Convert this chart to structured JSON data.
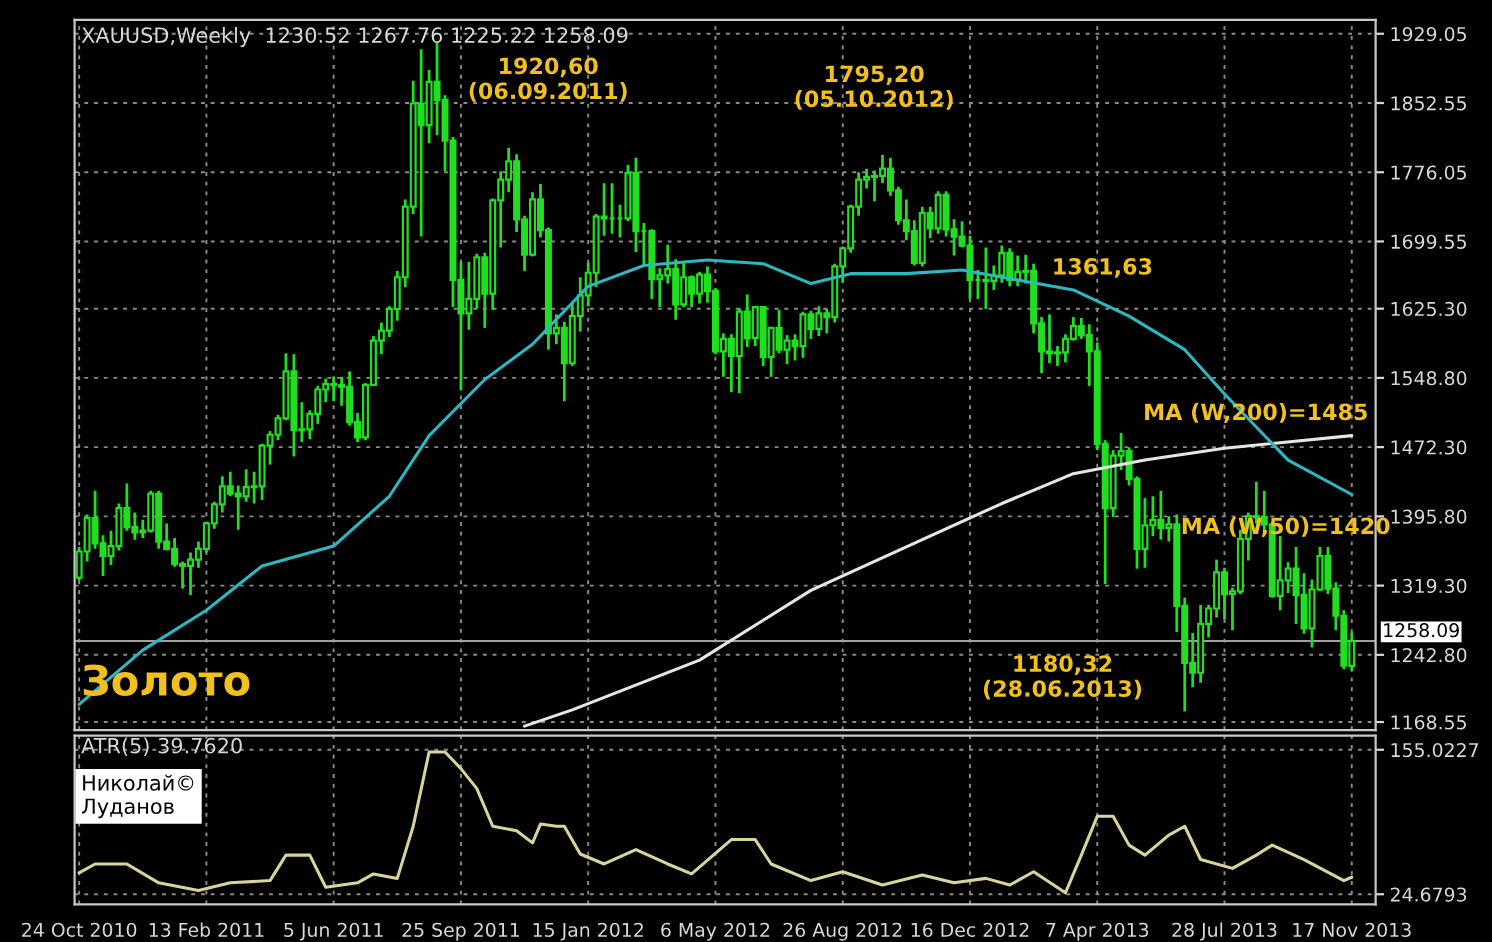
{
  "chart_data": [
    {
      "type": "candlestick",
      "title": "XAUUSD,Weekly  1230.52 1267.76 1225.22 1258.09",
      "color": "#22dd22",
      "x": [
        "2010-10-24",
        "2010-10-31",
        "2010-11-07",
        "2010-11-14",
        "2010-11-21",
        "2010-11-28",
        "2010-12-05",
        "2010-12-12",
        "2010-12-19",
        "2010-12-26",
        "2011-01-02",
        "2011-01-09",
        "2011-01-16",
        "2011-01-23",
        "2011-01-30",
        "2011-02-06",
        "2011-02-13",
        "2011-02-20",
        "2011-02-27",
        "2011-03-06",
        "2011-03-13",
        "2011-03-20",
        "2011-03-27",
        "2011-04-03",
        "2011-04-10",
        "2011-04-17",
        "2011-04-24",
        "2011-05-01",
        "2011-05-08",
        "2011-05-15",
        "2011-05-22",
        "2011-05-29",
        "2011-06-05",
        "2011-06-12",
        "2011-06-19",
        "2011-06-26",
        "2011-07-03",
        "2011-07-10",
        "2011-07-17",
        "2011-07-24",
        "2011-07-31",
        "2011-08-07",
        "2011-08-14",
        "2011-08-21",
        "2011-08-28",
        "2011-09-04",
        "2011-09-11",
        "2011-09-18",
        "2011-09-25",
        "2011-10-02",
        "2011-10-09",
        "2011-10-16",
        "2011-10-23",
        "2011-10-30",
        "2011-11-06",
        "2011-11-13",
        "2011-11-20",
        "2011-11-27",
        "2011-12-04",
        "2011-12-11",
        "2011-12-18",
        "2011-12-25",
        "2012-01-01",
        "2012-01-08",
        "2012-01-15",
        "2012-01-22",
        "2012-01-29",
        "2012-02-05",
        "2012-02-12",
        "2012-02-19",
        "2012-02-26",
        "2012-03-04",
        "2012-03-11",
        "2012-03-18",
        "2012-03-25",
        "2012-04-01",
        "2012-04-08",
        "2012-04-15",
        "2012-04-22",
        "2012-04-29",
        "2012-05-06",
        "2012-05-13",
        "2012-05-20",
        "2012-05-27",
        "2012-06-03",
        "2012-06-10",
        "2012-06-17",
        "2012-06-24",
        "2012-07-01",
        "2012-07-08",
        "2012-07-15",
        "2012-07-22",
        "2012-07-29",
        "2012-08-05",
        "2012-08-12",
        "2012-08-19",
        "2012-08-26",
        "2012-09-02",
        "2012-09-09",
        "2012-09-16",
        "2012-09-23",
        "2012-09-30",
        "2012-10-07",
        "2012-10-14",
        "2012-10-21",
        "2012-10-28",
        "2012-11-04",
        "2012-11-11",
        "2012-11-18",
        "2012-11-25",
        "2012-12-02",
        "2012-12-09",
        "2012-12-16",
        "2012-12-23",
        "2012-12-30",
        "2013-01-06",
        "2013-01-13",
        "2013-01-20",
        "2013-01-27",
        "2013-02-03",
        "2013-02-10",
        "2013-02-17",
        "2013-02-24",
        "2013-03-03",
        "2013-03-10",
        "2013-03-17",
        "2013-03-24",
        "2013-03-31",
        "2013-04-07",
        "2013-04-14",
        "2013-04-21",
        "2013-04-28",
        "2013-05-05",
        "2013-05-12",
        "2013-05-19",
        "2013-05-26",
        "2013-06-02",
        "2013-06-09",
        "2013-06-16",
        "2013-06-23",
        "2013-06-30",
        "2013-07-07",
        "2013-07-14",
        "2013-07-21",
        "2013-07-28",
        "2013-08-04",
        "2013-08-11",
        "2013-08-18",
        "2013-08-25",
        "2013-09-01",
        "2013-09-08",
        "2013-09-15",
        "2013-09-22",
        "2013-09-29",
        "2013-10-06",
        "2013-10-13",
        "2013-10-20",
        "2013-10-27",
        "2013-11-03",
        "2013-11-10",
        "2013-11-17"
      ],
      "ohlc": [
        [
          1328,
          1362,
          1325,
          1357
        ],
        [
          1357,
          1398,
          1346,
          1394
        ],
        [
          1394,
          1424,
          1360,
          1366
        ],
        [
          1366,
          1375,
          1330,
          1352
        ],
        [
          1352,
          1380,
          1342,
          1363
        ],
        [
          1363,
          1410,
          1358,
          1405
        ],
        [
          1405,
          1432,
          1380,
          1384
        ],
        [
          1384,
          1400,
          1370,
          1378
        ],
        [
          1378,
          1392,
          1372,
          1380
        ],
        [
          1380,
          1424,
          1378,
          1421
        ],
        [
          1421,
          1424,
          1360,
          1368
        ],
        [
          1368,
          1388,
          1358,
          1360
        ],
        [
          1360,
          1372,
          1340,
          1343
        ],
        [
          1343,
          1346,
          1316,
          1341
        ],
        [
          1341,
          1356,
          1309,
          1348
        ],
        [
          1348,
          1368,
          1339,
          1360
        ],
        [
          1360,
          1390,
          1356,
          1388
        ],
        [
          1388,
          1412,
          1382,
          1409
        ],
        [
          1409,
          1440,
          1400,
          1429
        ],
        [
          1429,
          1445,
          1418,
          1421
        ],
        [
          1421,
          1430,
          1381,
          1418
        ],
        [
          1418,
          1448,
          1412,
          1428
        ],
        [
          1428,
          1445,
          1410,
          1429
        ],
        [
          1429,
          1476,
          1414,
          1474
        ],
        [
          1474,
          1490,
          1453,
          1486
        ],
        [
          1486,
          1508,
          1480,
          1504
        ],
        [
          1504,
          1576,
          1502,
          1556
        ],
        [
          1556,
          1575,
          1462,
          1491
        ],
        [
          1491,
          1522,
          1478,
          1492
        ],
        [
          1492,
          1513,
          1481,
          1509
        ],
        [
          1509,
          1540,
          1498,
          1536
        ],
        [
          1536,
          1548,
          1522,
          1542
        ],
        [
          1542,
          1550,
          1523,
          1541
        ],
        [
          1541,
          1550,
          1518,
          1539
        ],
        [
          1539,
          1556,
          1496,
          1500
        ],
        [
          1500,
          1510,
          1478,
          1483
        ],
        [
          1483,
          1543,
          1480,
          1541
        ],
        [
          1541,
          1595,
          1540,
          1590
        ],
        [
          1590,
          1610,
          1575,
          1601
        ],
        [
          1601,
          1628,
          1594,
          1625
        ],
        [
          1625,
          1667,
          1612,
          1660
        ],
        [
          1660,
          1746,
          1649,
          1738
        ],
        [
          1738,
          1877,
          1730,
          1852
        ],
        [
          1852,
          1912,
          1705,
          1828
        ],
        [
          1828,
          1889,
          1808,
          1876
        ],
        [
          1876,
          1920.6,
          1817,
          1856
        ],
        [
          1856,
          1861,
          1777,
          1811
        ],
        [
          1811,
          1815,
          1627,
          1657
        ],
        [
          1657,
          1677,
          1535,
          1620
        ],
        [
          1620,
          1677,
          1602,
          1636
        ],
        [
          1636,
          1686,
          1625,
          1682
        ],
        [
          1682,
          1687,
          1604,
          1642
        ],
        [
          1642,
          1747,
          1624,
          1745
        ],
        [
          1745,
          1777,
          1693,
          1768
        ],
        [
          1768,
          1803,
          1754,
          1788
        ],
        [
          1788,
          1796,
          1710,
          1724
        ],
        [
          1724,
          1728,
          1667,
          1685
        ],
        [
          1685,
          1754,
          1683,
          1746
        ],
        [
          1746,
          1763,
          1704,
          1712
        ],
        [
          1712,
          1715,
          1580,
          1598
        ],
        [
          1598,
          1619,
          1586,
          1604
        ],
        [
          1604,
          1611,
          1523,
          1565
        ],
        [
          1565,
          1631,
          1562,
          1617
        ],
        [
          1617,
          1660,
          1600,
          1640
        ],
        [
          1640,
          1676,
          1628,
          1665
        ],
        [
          1665,
          1730,
          1649,
          1727
        ],
        [
          1727,
          1764,
          1706,
          1725
        ],
        [
          1725,
          1764,
          1708,
          1725
        ],
        [
          1725,
          1740,
          1704,
          1725
        ],
        [
          1725,
          1784,
          1722,
          1775
        ],
        [
          1775,
          1792,
          1688,
          1711
        ],
        [
          1711,
          1720,
          1673,
          1711
        ],
        [
          1711,
          1713,
          1636,
          1658
        ],
        [
          1658,
          1670,
          1627,
          1662
        ],
        [
          1662,
          1696,
          1653,
          1669
        ],
        [
          1669,
          1680,
          1613,
          1630
        ],
        [
          1630,
          1678,
          1627,
          1660
        ],
        [
          1660,
          1662,
          1627,
          1642
        ],
        [
          1642,
          1666,
          1631,
          1663
        ],
        [
          1663,
          1672,
          1632,
          1645
        ],
        [
          1645,
          1648,
          1575,
          1578
        ],
        [
          1578,
          1598,
          1550,
          1592
        ],
        [
          1592,
          1597,
          1533,
          1573
        ],
        [
          1573,
          1626,
          1532,
          1622
        ],
        [
          1622,
          1641,
          1583,
          1593
        ],
        [
          1593,
          1628,
          1584,
          1627
        ],
        [
          1627,
          1628,
          1562,
          1572
        ],
        [
          1572,
          1605,
          1550,
          1604
        ],
        [
          1604,
          1624,
          1576,
          1580
        ],
        [
          1580,
          1596,
          1564,
          1590
        ],
        [
          1590,
          1597,
          1568,
          1584
        ],
        [
          1584,
          1622,
          1571,
          1619
        ],
        [
          1619,
          1623,
          1592,
          1603
        ],
        [
          1603,
          1628,
          1595,
          1620
        ],
        [
          1620,
          1625,
          1598,
          1616
        ],
        [
          1616,
          1675,
          1610,
          1672
        ],
        [
          1672,
          1694,
          1654,
          1692
        ],
        [
          1692,
          1740,
          1687,
          1738
        ],
        [
          1738,
          1776,
          1728,
          1768
        ],
        [
          1768,
          1780,
          1758,
          1771
        ],
        [
          1771,
          1778,
          1744,
          1772
        ],
        [
          1772,
          1795.2,
          1764,
          1780
        ],
        [
          1780,
          1792,
          1750,
          1756
        ],
        [
          1756,
          1760,
          1718,
          1723
        ],
        [
          1723,
          1746,
          1701,
          1711
        ],
        [
          1711,
          1723,
          1673,
          1676
        ],
        [
          1676,
          1738,
          1672,
          1731
        ],
        [
          1731,
          1738,
          1703,
          1714
        ],
        [
          1714,
          1755,
          1708,
          1751
        ],
        [
          1751,
          1755,
          1705,
          1713
        ],
        [
          1713,
          1724,
          1684,
          1705
        ],
        [
          1705,
          1722,
          1693,
          1695
        ],
        [
          1695,
          1706,
          1636,
          1657
        ],
        [
          1657,
          1668,
          1636,
          1657
        ],
        [
          1657,
          1693,
          1625,
          1656
        ],
        [
          1656,
          1673,
          1646,
          1662
        ],
        [
          1662,
          1695,
          1654,
          1687
        ],
        [
          1687,
          1692,
          1650,
          1657
        ],
        [
          1657,
          1684,
          1650,
          1666
        ],
        [
          1666,
          1685,
          1653,
          1667
        ],
        [
          1667,
          1675,
          1598,
          1609
        ],
        [
          1609,
          1616,
          1554,
          1578
        ],
        [
          1578,
          1619,
          1565,
          1576
        ],
        [
          1576,
          1584,
          1562,
          1577
        ],
        [
          1577,
          1597,
          1566,
          1592
        ],
        [
          1592,
          1616,
          1590,
          1606
        ],
        [
          1606,
          1615,
          1592,
          1596
        ],
        [
          1596,
          1608,
          1540,
          1578
        ],
        [
          1578,
          1588,
          1469,
          1476
        ],
        [
          1476,
          1480,
          1321,
          1405
        ],
        [
          1405,
          1469,
          1395,
          1463
        ],
        [
          1463,
          1488,
          1447,
          1468
        ],
        [
          1468,
          1472,
          1430,
          1437
        ],
        [
          1437,
          1440,
          1338,
          1360
        ],
        [
          1360,
          1416,
          1339,
          1386
        ],
        [
          1386,
          1418,
          1374,
          1392
        ],
        [
          1392,
          1424,
          1370,
          1383
        ],
        [
          1383,
          1396,
          1368,
          1387
        ],
        [
          1387,
          1398,
          1268,
          1297
        ],
        [
          1297,
          1306,
          1180.32,
          1234
        ],
        [
          1234,
          1267,
          1207,
          1223
        ],
        [
          1223,
          1298,
          1212,
          1277
        ],
        [
          1277,
          1298,
          1262,
          1294
        ],
        [
          1294,
          1348,
          1284,
          1334
        ],
        [
          1334,
          1339,
          1282,
          1310
        ],
        [
          1310,
          1317,
          1270,
          1313
        ],
        [
          1313,
          1381,
          1310,
          1371
        ],
        [
          1371,
          1400,
          1347,
          1396
        ],
        [
          1396,
          1434,
          1388,
          1395
        ],
        [
          1395,
          1424,
          1377,
          1387
        ],
        [
          1387,
          1390,
          1306,
          1308
        ],
        [
          1308,
          1374,
          1292,
          1325
        ],
        [
          1325,
          1345,
          1311,
          1338
        ],
        [
          1338,
          1362,
          1277,
          1309
        ],
        [
          1309,
          1333,
          1266,
          1272
        ],
        [
          1272,
          1326,
          1251,
          1315
        ],
        [
          1315,
          1362,
          1313,
          1352
        ],
        [
          1352,
          1362,
          1310,
          1316
        ],
        [
          1316,
          1323,
          1270,
          1286
        ],
        [
          1286,
          1292,
          1227,
          1231
        ],
        [
          1230.52,
          1267.76,
          1225.22,
          1258.09
        ]
      ],
      "series": [
        {
          "type": "line",
          "name": "MA (W,200)=1485",
          "color": "#e6e6e6",
          "x": [
            "2011-11-20",
            "2012-01-01",
            "2012-04-22",
            "2012-07-29",
            "2012-11-04",
            "2013-01-13",
            "2013-03-17",
            "2013-05-19",
            "2013-07-28",
            "2013-11-17"
          ],
          "values": [
            1164,
            1182,
            1237,
            1314,
            1370,
            1410,
            1443,
            1458,
            1471,
            1485
          ]
        },
        {
          "type": "line",
          "name": "MA (W,50)=1420",
          "color": "#2bb8c4",
          "x": [
            "2010-10-24",
            "2010-12-19",
            "2011-02-13",
            "2011-04-03",
            "2011-06-05",
            "2011-07-24",
            "2011-08-28",
            "2011-10-16",
            "2011-11-27",
            "2012-01-15",
            "2012-03-04",
            "2012-04-29",
            "2012-06-17",
            "2012-07-29",
            "2012-09-02",
            "2012-10-21",
            "2012-12-09",
            "2013-01-27",
            "2013-03-17",
            "2013-05-05",
            "2013-06-23",
            "2013-07-28",
            "2013-09-22",
            "2013-11-17"
          ],
          "values": [
            1188,
            1248,
            1292,
            1341,
            1363,
            1418,
            1485,
            1547,
            1586,
            1650,
            1673,
            1679,
            1675,
            1653,
            1664,
            1664,
            1668,
            1657,
            1646,
            1617,
            1580,
            1531,
            1458,
            1420
          ]
        }
      ],
      "annotations": [
        {
          "text": "1920,60\n(06.09.2011)",
          "x": "2011-09-04",
          "y": 1920.6
        },
        {
          "text": "1795,20\n(05.10.2012)",
          "x": "2012-09-30",
          "y": 1795.2
        },
        {
          "text": "1180,32\n(28.06.2013)",
          "x": "2013-06-23",
          "y": 1180.32
        },
        "1361,63",
        "Золото"
      ],
      "ref_lines": [
        {
          "axis": "y",
          "value": 1258.09,
          "label": "1258.09",
          "color": "#a0a0a0"
        }
      ],
      "xlim": [
        "2010-10-20",
        "2013-12-08"
      ],
      "xticks": [
        {
          "value": "2010-10-24",
          "label": null
        },
        {
          "value": "2011-02-13",
          "label": null
        },
        {
          "value": "2011-06-05",
          "label": null
        },
        {
          "value": "2011-09-25",
          "label": null
        },
        {
          "value": "2012-01-15",
          "label": null
        },
        {
          "value": "2012-05-06",
          "label": null
        },
        {
          "value": "2012-08-26",
          "label": null
        },
        {
          "value": "2012-12-16",
          "label": null
        },
        {
          "value": "2013-04-07",
          "label": null
        },
        {
          "value": "2013-07-28",
          "label": null
        },
        {
          "value": "2013-11-17",
          "label": null
        }
      ],
      "ylim": [
        1159.7,
        1944.5
      ],
      "yticks": [
        1929.05,
        1852.55,
        1776.05,
        1699.55,
        {
          "value": 1625.3,
          "label": "1625.30"
        },
        {
          "value": 1548.8,
          "label": "1548.80"
        },
        {
          "value": 1472.3,
          "label": "1472.30"
        },
        {
          "value": 1395.8,
          "label": "1395.80"
        },
        {
          "value": 1319.3,
          "label": "1319.30"
        },
        {
          "value": 1242.8,
          "label": "1242.80"
        },
        1168.55
      ],
      "tick_labels": "y",
      "grid": true
    },
    {
      "type": "line",
      "title": "ATR(5) 39.7620",
      "series": [
        {
          "color": "#d8d49a",
          "x": [
            "2010-10-24",
            "2010-11-07",
            "2010-12-05",
            "2011-01-02",
            "2011-02-06",
            "2011-03-06",
            "2011-04-10",
            "2011-04-24",
            "2011-05-15",
            "2011-05-29",
            "2011-06-26",
            "2011-07-10",
            "2011-07-31",
            "2011-08-14",
            "2011-08-28",
            "2011-09-11",
            "2011-09-25",
            "2011-10-09",
            "2011-10-23",
            "2011-11-13",
            "2011-11-27",
            "2011-12-04",
            "2011-12-18",
            "2011-12-25",
            "2012-01-08",
            "2012-01-29",
            "2012-02-26",
            "2012-03-25",
            "2012-04-15",
            "2012-05-20",
            "2012-06-10",
            "2012-06-24",
            "2012-07-29",
            "2012-08-26",
            "2012-09-30",
            "2012-11-04",
            "2012-12-02",
            "2012-12-30",
            "2013-01-20",
            "2013-02-10",
            "2013-03-10",
            "2013-03-24",
            "2013-04-07",
            "2013-04-21",
            "2013-05-05",
            "2013-05-19",
            "2013-06-09",
            "2013-06-23",
            "2013-07-07",
            "2013-08-04",
            "2013-08-25",
            "2013-09-08",
            "2013-10-06",
            "2013-11-10",
            "2013-11-17"
          ],
          "values": [
            44,
            52,
            52,
            35,
            28,
            35,
            37,
            60,
            60,
            31,
            35,
            43,
            39,
            86,
            153,
            153,
            138,
            120,
            86,
            82,
            71,
            88,
            86,
            86,
            61,
            52,
            65,
            52,
            43,
            74,
            74,
            52,
            37,
            45,
            33,
            42,
            35,
            39,
            33,
            45,
            26,
            60,
            95,
            95,
            69,
            60,
            78,
            86,
            56,
            48,
            60,
            69,
            56,
            37,
            40
          ]
        }
      ],
      "annotations": [
        "Николай©\nЛуданов"
      ],
      "xlim": [
        "2010-10-20",
        "2013-12-08"
      ],
      "xticks": [
        {
          "value": "2010-10-24",
          "label": "24 Oct 2010"
        },
        {
          "value": "2011-02-13",
          "label": "13 Feb 2011"
        },
        {
          "value": "2011-06-05",
          "label": "5 Jun 2011"
        },
        {
          "value": "2011-09-25",
          "label": "25 Sep 2011"
        },
        {
          "value": "2012-01-15",
          "label": "15 Jan 2012"
        },
        {
          "value": "2012-05-06",
          "label": "6 May 2012"
        },
        {
          "value": "2012-08-26",
          "label": "26 Aug 2012"
        },
        {
          "value": "2012-12-16",
          "label": "16 Dec 2012"
        },
        {
          "value": "2013-04-07",
          "label": "7 Apr 2013"
        },
        {
          "value": "2013-07-28",
          "label": "28 Jul 2013"
        },
        {
          "value": "2013-11-17",
          "label": "17 Nov 2013"
        }
      ],
      "ylim": [
        15.6,
        167.7
      ],
      "yticks": [
        155.0227,
        24.6793
      ],
      "grid": true
    }
  ]
}
